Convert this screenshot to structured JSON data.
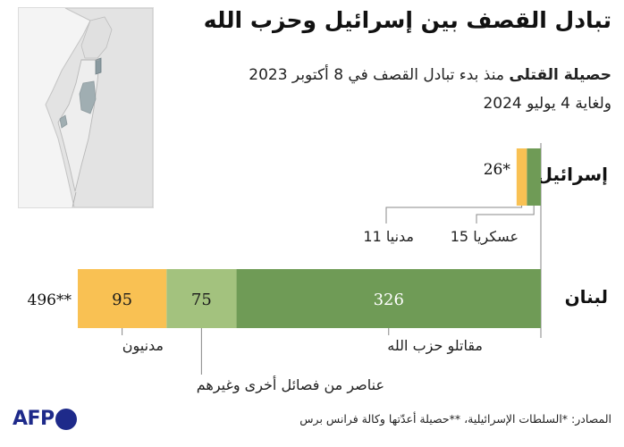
{
  "header": {
    "title": "تبادل القصف بين إسرائيل وحزب الله",
    "subtitle_bold": "حصيلة القتلى",
    "subtitle_rest": "منذ بدء تبادل القصف في 8 أكتوبر 2023",
    "subtitle_line2": "ولغاية 4 يوليو 2024"
  },
  "colors": {
    "civilians": "#f9c153",
    "other_factions": "#a3c27e",
    "hezbollah": "#6f9b56",
    "israel_military": "#6f9b56",
    "israel_civilians": "#f9c153",
    "map_land": "#e2e2e2",
    "map_highlight": "#a0aeb2"
  },
  "chart_data": {
    "type": "bar",
    "orientation": "horizontal",
    "stacked": true,
    "categories": [
      "إسرائيل",
      "لبنان"
    ],
    "totals": [
      "26*",
      "496**"
    ],
    "total_values": [
      26,
      496
    ],
    "xlim": [
      0,
      496
    ],
    "series": [
      {
        "country": "إسرائيل",
        "segments": [
          {
            "name": "عسكريا",
            "value": 15,
            "callout": "15 عسكريا",
            "color_key": "israel_military"
          },
          {
            "name": "مدنيا",
            "value": 11,
            "callout": "11 مدنيا",
            "color_key": "israel_civilians"
          }
        ]
      },
      {
        "country": "لبنان",
        "segments": [
          {
            "name": "مقاتلو حزب الله",
            "value": 326,
            "label": "326",
            "callout": "مقاتلو حزب الله",
            "color_key": "hezbollah"
          },
          {
            "name": "عناصر من فصائل أخرى وغيرهم",
            "value": 75,
            "label": "75",
            "callout": "عناصر من فصائل أخرى وغيرهم",
            "color_key": "other_factions"
          },
          {
            "name": "مدنيون",
            "value": 95,
            "label": "95",
            "callout": "مدنيون",
            "color_key": "civilians"
          }
        ]
      }
    ]
  },
  "footer": {
    "sources": "المصادر: *السلطات الإسرائيلية، **حصيلة أعدّتها وكالة فرانس برس"
  },
  "logo": {
    "text": "AFP"
  }
}
